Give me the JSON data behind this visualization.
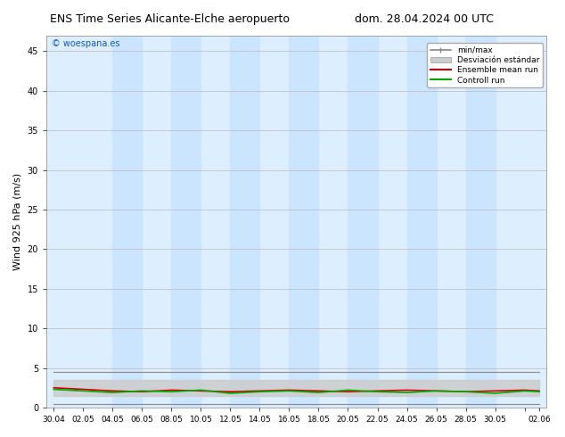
{
  "title_left": "ENS Time Series Alicante-Elche aeropuerto",
  "title_right": "dom. 28.04.2024 00 UTC",
  "ylabel": "Wind 925 hPa (m/s)",
  "watermark": "© woespana.es",
  "ylim": [
    0,
    47
  ],
  "yticks": [
    0,
    5,
    10,
    15,
    20,
    25,
    30,
    35,
    40,
    45
  ],
  "bg_color": "#ffffff",
  "plot_bg_color": "#ddeeff",
  "band_color": "#cce5ff",
  "legend_entries": [
    {
      "label": "min/max",
      "color": "#888888"
    },
    {
      "label": "Desviación estándar",
      "color": "#cccccc"
    },
    {
      "label": "Ensemble mean run",
      "color": "#cc0000"
    },
    {
      "label": "Controll run",
      "color": "#00aa00"
    }
  ],
  "tick_positions": [
    0,
    2,
    4,
    6,
    8,
    10,
    12,
    14,
    16,
    18,
    20,
    22,
    24,
    26,
    28,
    30,
    32,
    33
  ],
  "tick_labels": [
    "30.04",
    "02.05",
    "04.05",
    "06.05",
    "08.05",
    "10.05",
    "12.05",
    "14.05",
    "16.05",
    "18.05",
    "20.05",
    "22.05",
    "24.05",
    "26.05",
    "28.05",
    "30.05",
    "",
    "02.06"
  ],
  "x_values_days": [
    0,
    2,
    4,
    6,
    8,
    10,
    12,
    14,
    16,
    18,
    20,
    22,
    24,
    26,
    28,
    30,
    32,
    33
  ],
  "ensemble_mean": [
    2.5,
    2.3,
    2.1,
    2.0,
    2.2,
    2.1,
    2.0,
    2.1,
    2.2,
    2.1,
    2.0,
    2.1,
    2.2,
    2.1,
    2.0,
    2.1,
    2.2,
    2.1
  ],
  "control_run": [
    2.3,
    2.1,
    1.9,
    2.1,
    2.0,
    2.2,
    1.8,
    2.0,
    2.1,
    1.9,
    2.2,
    2.0,
    1.9,
    2.1,
    2.0,
    1.8,
    2.1,
    2.0
  ],
  "min_vals": [
    0.5,
    0.5,
    0.5,
    0.5,
    0.5,
    0.5,
    0.5,
    0.5,
    0.5,
    0.5,
    0.5,
    0.5,
    0.5,
    0.5,
    0.5,
    0.5,
    0.5,
    0.5
  ],
  "max_vals": [
    4.5,
    4.5,
    4.5,
    4.5,
    4.5,
    4.5,
    4.5,
    4.5,
    4.5,
    4.5,
    4.5,
    4.5,
    4.5,
    4.5,
    4.5,
    4.5,
    4.5,
    4.5
  ],
  "std_low": [
    1.5,
    1.5,
    1.5,
    1.5,
    1.5,
    1.5,
    1.5,
    1.5,
    1.5,
    1.5,
    1.5,
    1.5,
    1.5,
    1.5,
    1.5,
    1.5,
    1.5,
    1.5
  ],
  "std_high": [
    3.5,
    3.5,
    3.5,
    3.5,
    3.5,
    3.5,
    3.5,
    3.5,
    3.5,
    3.5,
    3.5,
    3.5,
    3.5,
    3.5,
    3.5,
    3.5,
    3.5,
    3.5
  ],
  "band_pairs": [
    [
      4,
      6
    ],
    [
      8,
      10
    ],
    [
      12,
      14
    ],
    [
      16,
      18
    ],
    [
      20,
      22
    ],
    [
      24,
      26
    ],
    [
      28,
      30
    ]
  ],
  "x_min": -0.5,
  "x_max": 33.5
}
